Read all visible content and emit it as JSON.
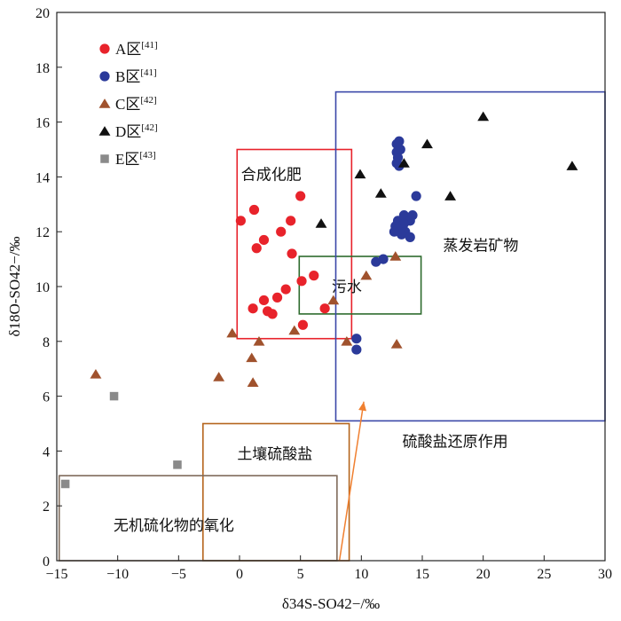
{
  "chart_data": {
    "type": "scatter",
    "xlabel": "δ34S-SO42−/‰",
    "ylabel": "δ18O-SO42−/‰",
    "xlim": [
      -15,
      30
    ],
    "ylim": [
      0,
      20
    ],
    "xticks": [
      -15,
      -10,
      -5,
      0,
      5,
      10,
      15,
      20,
      25,
      30
    ],
    "yticks": [
      0,
      2,
      4,
      6,
      8,
      10,
      12,
      14,
      16,
      18,
      20
    ],
    "xtick_labels": [
      "−15",
      "−10",
      "−5",
      "0",
      "5",
      "10",
      "15",
      "20",
      "25",
      "30"
    ],
    "ytick_labels": [
      "0",
      "2",
      "4",
      "6",
      "8",
      "10",
      "12",
      "14",
      "16",
      "18",
      "20"
    ],
    "legend_position": "top-left",
    "series": [
      {
        "name": "A区",
        "ref": "[41]",
        "marker": "circle",
        "color": "#e8232b",
        "points": [
          [
            0.1,
            12.4
          ],
          [
            1.2,
            12.8
          ],
          [
            1.4,
            11.4
          ],
          [
            2.0,
            11.7
          ],
          [
            3.4,
            12.0
          ],
          [
            4.2,
            12.4
          ],
          [
            5.0,
            13.3
          ],
          [
            4.3,
            11.2
          ],
          [
            3.1,
            9.6
          ],
          [
            3.8,
            9.9
          ],
          [
            2.0,
            9.5
          ],
          [
            2.3,
            9.1
          ],
          [
            1.1,
            9.2
          ],
          [
            2.7,
            9.0
          ],
          [
            5.1,
            10.2
          ],
          [
            6.1,
            10.4
          ],
          [
            7.0,
            9.2
          ],
          [
            5.2,
            8.6
          ]
        ]
      },
      {
        "name": "B区",
        "ref": "[41]",
        "marker": "circle",
        "color": "#2b3a9a",
        "points": [
          [
            11.2,
            10.9
          ],
          [
            11.8,
            11.0
          ],
          [
            9.6,
            8.1
          ],
          [
            9.6,
            7.7
          ],
          [
            12.9,
            15.2
          ],
          [
            13.1,
            15.3
          ],
          [
            13.2,
            15.0
          ],
          [
            12.9,
            14.9
          ],
          [
            13.0,
            14.7
          ],
          [
            12.9,
            14.5
          ],
          [
            13.1,
            14.4
          ],
          [
            14.5,
            13.3
          ],
          [
            13.0,
            12.4
          ],
          [
            13.5,
            12.6
          ],
          [
            14.0,
            12.4
          ],
          [
            14.2,
            12.6
          ],
          [
            13.5,
            12.3
          ],
          [
            12.8,
            12.2
          ],
          [
            13.0,
            12.1
          ],
          [
            12.7,
            12.0
          ],
          [
            13.6,
            12.0
          ],
          [
            13.3,
            11.9
          ],
          [
            14.0,
            11.8
          ]
        ]
      },
      {
        "name": "C区",
        "ref": "[42]",
        "marker": "triangle",
        "color": "#a0522d",
        "points": [
          [
            -11.8,
            6.8
          ],
          [
            -0.6,
            8.3
          ],
          [
            -1.7,
            6.7
          ],
          [
            1.0,
            7.4
          ],
          [
            1.1,
            6.5
          ],
          [
            1.6,
            8.0
          ],
          [
            4.5,
            8.4
          ],
          [
            7.7,
            9.5
          ],
          [
            8.8,
            8.0
          ],
          [
            10.4,
            10.4
          ],
          [
            12.8,
            11.1
          ],
          [
            12.9,
            7.9
          ]
        ]
      },
      {
        "name": "D区",
        "ref": "[42]",
        "marker": "triangle",
        "color": "#111111",
        "points": [
          [
            6.7,
            12.3
          ],
          [
            9.9,
            14.1
          ],
          [
            11.6,
            13.4
          ],
          [
            13.5,
            14.5
          ],
          [
            15.4,
            15.2
          ],
          [
            17.3,
            13.3
          ],
          [
            20.0,
            16.2
          ],
          [
            27.3,
            14.4
          ]
        ]
      },
      {
        "name": "E区",
        "ref": "[43]",
        "marker": "square",
        "color": "#8a8a8a",
        "points": [
          [
            -14.3,
            2.8
          ],
          [
            -10.3,
            6.0
          ],
          [
            -5.1,
            3.5
          ]
        ]
      }
    ],
    "regions": [
      {
        "label": "合成化肥",
        "color": "#e8232b",
        "x": [
          -0.2,
          9.2
        ],
        "y": [
          8.1,
          15.0
        ]
      },
      {
        "label": "污水",
        "color": "#2e6b2e",
        "x": [
          4.9,
          14.9
        ],
        "y": [
          9.0,
          11.1
        ]
      },
      {
        "label": "蒸发岩矿物",
        "color": "#3a47a8",
        "x": [
          7.9,
          30.0
        ],
        "y": [
          5.1,
          17.1
        ]
      },
      {
        "label": "土壤硫酸盐",
        "color": "#b5651d",
        "x": [
          -3.0,
          9.0
        ],
        "y": [
          0.0,
          5.0
        ]
      },
      {
        "label": "无机硫化物的氧化",
        "color": "#7f6a5a",
        "x": [
          -14.8,
          8.0
        ],
        "y": [
          0.0,
          3.1
        ]
      }
    ],
    "annotation": {
      "label": "硫酸盐还原作用",
      "from": [
        8.2,
        0.0
      ],
      "to": [
        10.2,
        5.8
      ],
      "color": "#f08030"
    }
  }
}
